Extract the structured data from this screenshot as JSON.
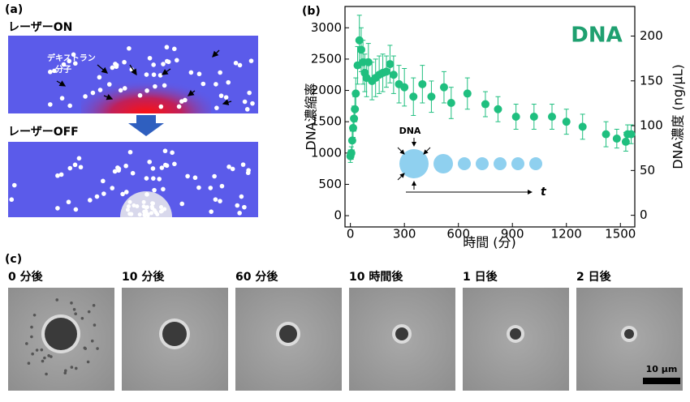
{
  "panel_a": {
    "label": "(a)",
    "on_title": "レーザーON",
    "molecule_label": [
      "デキストラン",
      "分子"
    ],
    "off_title": "レーザーOFF"
  },
  "chart_data": {
    "type": "scatter",
    "panel_label": "(b)",
    "annotation": "DNA",
    "inset_label": "DNA",
    "inset_axis_label": "t",
    "x_label": "時間 (分)",
    "y_label": "DNA濃縮率",
    "y2_label": "DNA濃度 (ng/µL)",
    "x": [
      0,
      5,
      10,
      15,
      20,
      25,
      30,
      40,
      50,
      60,
      70,
      80,
      90,
      100,
      120,
      140,
      160,
      180,
      200,
      220,
      240,
      270,
      300,
      350,
      400,
      450,
      520,
      560,
      650,
      750,
      820,
      920,
      1020,
      1120,
      1200,
      1290,
      1420,
      1480,
      1530,
      1540,
      1560
    ],
    "series": [
      {
        "color": "#1fbf7f",
        "values": [
          950,
          1000,
          1200,
          1400,
          1550,
          1700,
          1950,
          2400,
          2800,
          2650,
          2450,
          2280,
          2200,
          2450,
          2150,
          2200,
          2250,
          2280,
          2300,
          2420,
          2250,
          2100,
          2050,
          1900,
          2100,
          1900,
          2050,
          1800,
          1950,
          1780,
          1700,
          1580,
          1580,
          1580,
          1500,
          1420,
          1300,
          1230,
          1180,
          1300,
          1300
        ],
        "errors": [
          100,
          100,
          150,
          150,
          200,
          200,
          250,
          300,
          400,
          350,
          350,
          300,
          300,
          300,
          300,
          300,
          300,
          300,
          250,
          300,
          300,
          300,
          300,
          300,
          300,
          250,
          250,
          250,
          250,
          200,
          200,
          200,
          200,
          200,
          200,
          200,
          200,
          150,
          150,
          150,
          150
        ]
      }
    ],
    "xlim": [
      -30,
      1580
    ],
    "ylim": [
      -180,
      3340
    ],
    "y2lim": [
      -13,
      233
    ],
    "xticks": [
      0,
      300,
      600,
      900,
      1200,
      1500
    ],
    "yticks": [
      0,
      500,
      1000,
      1500,
      2000,
      2500,
      3000
    ],
    "y2ticks": [
      0,
      50,
      100,
      150,
      200
    ]
  },
  "panel_c": {
    "label": "(c)",
    "images": [
      {
        "label": "0 分後"
      },
      {
        "label": "10 分後"
      },
      {
        "label": "60 分後"
      },
      {
        "label": "10 時間後"
      },
      {
        "label": "1 日後"
      },
      {
        "label": "2 日後"
      }
    ],
    "scale_bar": "10 µm"
  }
}
